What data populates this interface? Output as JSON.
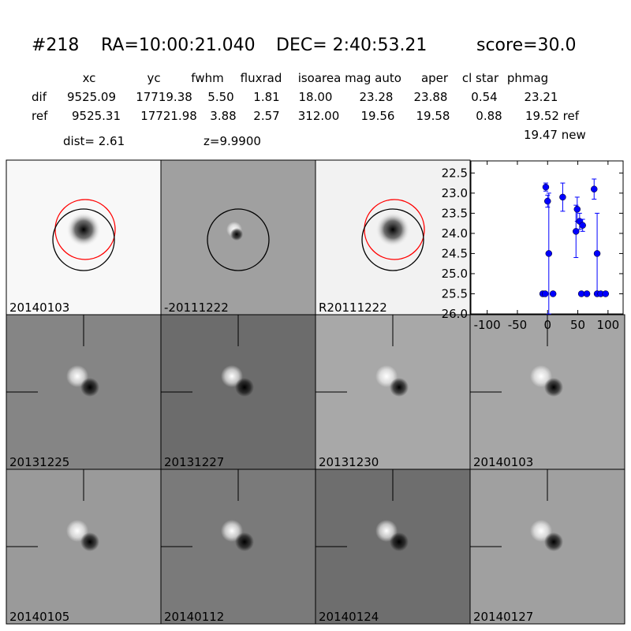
{
  "header": {
    "id": "#218",
    "ra": "RA=10:00:21.040",
    "dec": "DEC= 2:40:53.21",
    "score": "score=30.0"
  },
  "table": {
    "columns": [
      "xc",
      "yc",
      "fwhm",
      "fluxrad",
      "isoarea",
      "mag auto",
      "aper",
      "cl star",
      "phmag"
    ],
    "rows": [
      {
        "label": "dif",
        "values": [
          "9525.09",
          "17719.38",
          "5.50",
          "1.81",
          "18.00",
          "23.28",
          "23.88",
          "0.54",
          "23.21"
        ]
      },
      {
        "label": "ref",
        "values": [
          "9525.31",
          "17721.98",
          "3.88",
          "2.57",
          "312.00",
          "19.56",
          "19.58",
          "0.88",
          "19.52 ref"
        ]
      }
    ],
    "extra": "19.47 new"
  },
  "info": {
    "dist": "dist=  2.61",
    "z": "z=9.9900"
  },
  "stamps": [
    {
      "label": "20140103"
    },
    {
      "label": "-20111222"
    },
    {
      "label": "R20111222"
    },
    {
      "label": "20131225"
    },
    {
      "label": "20131227"
    },
    {
      "label": "20131230"
    },
    {
      "label": "20140103",
      "color": "#ff0000"
    },
    {
      "label": "20140105"
    },
    {
      "label": "20140112"
    },
    {
      "label": "20140124"
    },
    {
      "label": "20140127"
    }
  ],
  "chart_data": {
    "type": "scatter",
    "color": "#0000ff",
    "x": [
      -8,
      -4,
      -3,
      0,
      2,
      9,
      25,
      47,
      49,
      53,
      56,
      58,
      65,
      77,
      82,
      82,
      88,
      96
    ],
    "values": [
      25.5,
      25.5,
      22.85,
      23.2,
      24.5,
      25.5,
      23.1,
      23.95,
      23.4,
      23.7,
      25.5,
      23.8,
      25.5,
      22.9,
      24.5,
      25.5,
      25.5,
      25.5
    ],
    "errors": [
      0.05,
      0.05,
      0.1,
      0.15,
      1.5,
      0.05,
      0.35,
      0.65,
      0.3,
      0.2,
      0.05,
      0.15,
      0.05,
      0.25,
      1.0,
      0.05,
      0.05,
      0.05
    ],
    "xlim": [
      -127,
      125
    ],
    "ylim": [
      26.0,
      22.2
    ],
    "xticks": [
      -100,
      -50,
      0,
      50,
      100
    ],
    "yticks": [
      {
        "value": 22.5,
        "label": "22.5"
      },
      {
        "value": 23.0,
        "label": "23.0"
      },
      {
        "value": 23.5,
        "label": "23.5"
      },
      {
        "value": 24.0,
        "label": "24.0"
      },
      {
        "value": 24.5,
        "label": "24.5"
      },
      {
        "value": 25.0,
        "label": "25.0"
      },
      {
        "value": 25.5,
        "label": "25.5"
      },
      {
        "value": 26.0,
        "label": "26.0"
      }
    ]
  }
}
